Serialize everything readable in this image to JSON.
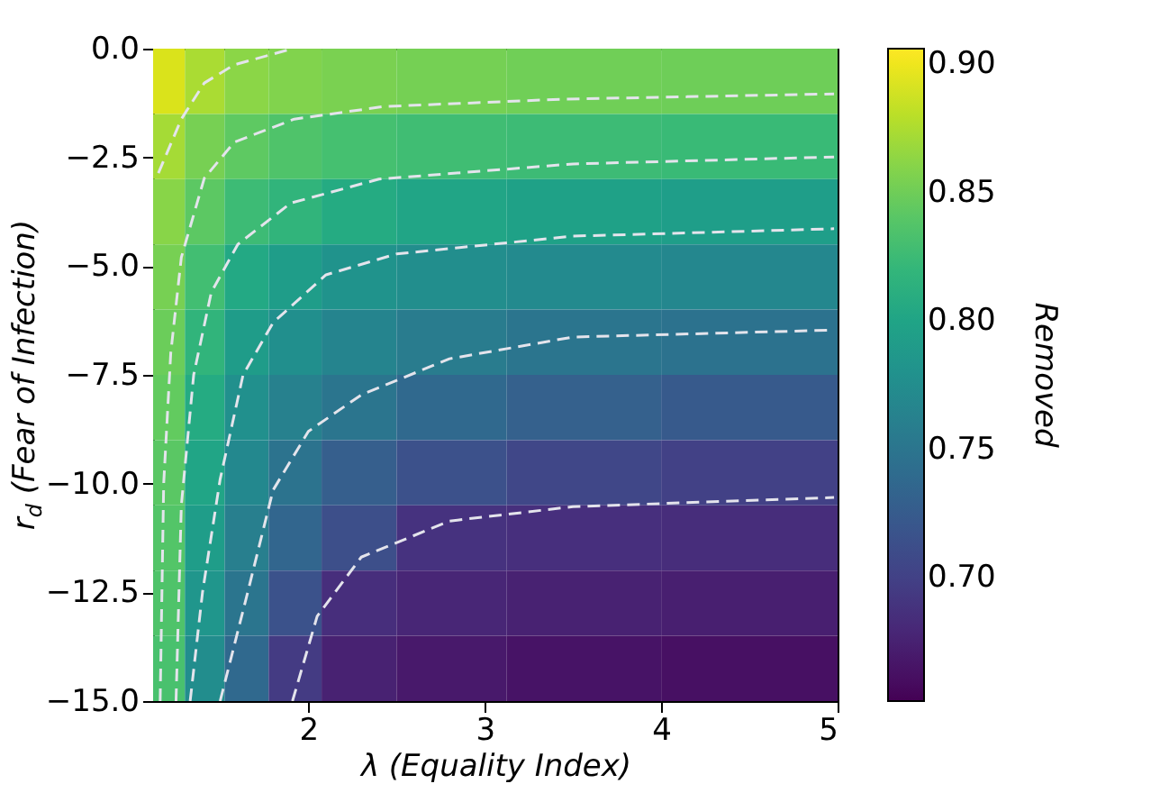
{
  "chart_data": {
    "type": "heatmap",
    "xlabel": "λ (Equality Index)",
    "ylabel": "r$_{d}$ (Fear of Infection)",
    "clabel": "Removed",
    "x": [
      1.2,
      1.4,
      1.65,
      1.9,
      2.25,
      2.75,
      3.5,
      4.5
    ],
    "cells": [
      [
        0.892,
        0.874,
        0.862,
        0.858,
        0.855,
        0.853,
        0.851,
        0.85
      ],
      [
        0.872,
        0.854,
        0.843,
        0.836,
        0.831,
        0.828,
        0.826,
        0.824
      ],
      [
        0.861,
        0.842,
        0.826,
        0.818,
        0.808,
        0.801,
        0.797,
        0.794
      ],
      [
        0.854,
        0.829,
        0.805,
        0.793,
        0.782,
        0.776,
        0.772,
        0.769
      ],
      [
        0.849,
        0.818,
        0.792,
        0.777,
        0.766,
        0.757,
        0.75,
        0.747
      ],
      [
        0.845,
        0.808,
        0.778,
        0.762,
        0.75,
        0.738,
        0.729,
        0.723
      ],
      [
        0.841,
        0.801,
        0.77,
        0.748,
        0.727,
        0.714,
        0.705,
        0.7
      ],
      [
        0.838,
        0.793,
        0.76,
        0.735,
        0.712,
        0.688,
        0.686,
        0.684
      ],
      [
        0.836,
        0.785,
        0.75,
        0.715,
        0.685,
        0.678,
        0.675,
        0.673
      ],
      [
        0.833,
        0.775,
        0.738,
        0.695,
        0.675,
        0.668,
        0.664,
        0.662
      ]
    ],
    "xlim": [
      1.12,
      5
    ],
    "ylim": [
      -15,
      0
    ],
    "xticks": [
      2,
      3,
      4,
      5
    ],
    "yticks": [
      {
        "value": 0,
        "label": "0.0"
      },
      {
        "value": -2.5,
        "label": "−2.5"
      },
      {
        "value": -5,
        "label": "−5.0"
      },
      {
        "value": -7.5,
        "label": "−7.5"
      },
      {
        "value": -10,
        "label": "−10.0"
      },
      {
        "value": -12.5,
        "label": "−12.5"
      },
      {
        "value": -15,
        "label": "−15.0"
      }
    ],
    "clim": [
      0.652,
      0.906
    ],
    "cticks": [
      {
        "value": 0.7,
        "label": "0.70"
      },
      {
        "value": 0.75,
        "label": "0.75"
      },
      {
        "value": 0.8,
        "label": "0.80"
      },
      {
        "value": 0.85,
        "label": "0.85"
      },
      {
        "value": 0.9,
        "label": "0.90"
      }
    ],
    "series": [
      {
        "type": "line",
        "color": "#e4e4ec",
        "line_style": "dashed",
        "x": [
          1.15,
          1.28,
          1.41,
          1.58,
          1.91
        ],
        "values": [
          -2.86,
          -1.62,
          -0.79,
          -0.37,
          0
        ]
      },
      {
        "type": "line",
        "color": "#e4e4ec",
        "line_style": "dashed",
        "x": [
          1.16,
          1.18,
          1.22,
          1.28,
          1.41,
          1.58,
          1.92,
          2.43,
          3.45,
          4.98
        ],
        "values": [
          -15,
          -10,
          -7,
          -4.8,
          -2.98,
          -2.15,
          -1.62,
          -1.33,
          -1.16,
          -1.04
        ]
      },
      {
        "type": "line",
        "color": "#e4e4ec",
        "line_style": "dashed",
        "x": [
          1.25,
          1.28,
          1.35,
          1.45,
          1.6,
          1.9,
          2.4,
          3.5,
          4.98
        ],
        "values": [
          -15,
          -10.5,
          -7.5,
          -5.6,
          -4.5,
          -3.55,
          -3.0,
          -2.65,
          -2.49
        ]
      },
      {
        "type": "line",
        "color": "#e4e4ec",
        "line_style": "dashed",
        "x": [
          1.33,
          1.4,
          1.5,
          1.63,
          1.8,
          2.1,
          2.5,
          3.5,
          4.98
        ],
        "values": [
          -15,
          -12.5,
          -9.9,
          -7.5,
          -6.3,
          -5.2,
          -4.72,
          -4.31,
          -4.14
        ]
      },
      {
        "type": "line",
        "color": "#e4e4ec",
        "line_style": "dashed",
        "x": [
          1.5,
          1.65,
          1.8,
          2.0,
          2.3,
          2.8,
          3.5,
          4.98
        ],
        "values": [
          -15,
          -12.6,
          -10.15,
          -8.8,
          -7.96,
          -7.13,
          -6.63,
          -6.47
        ]
      },
      {
        "type": "line",
        "color": "#e4e4ec",
        "line_style": "dashed",
        "x": [
          1.91,
          2.05,
          2.3,
          2.8,
          3.5,
          4.98
        ],
        "values": [
          -15,
          -13.05,
          -11.69,
          -10.86,
          -10.53,
          -10.32
        ]
      }
    ]
  }
}
